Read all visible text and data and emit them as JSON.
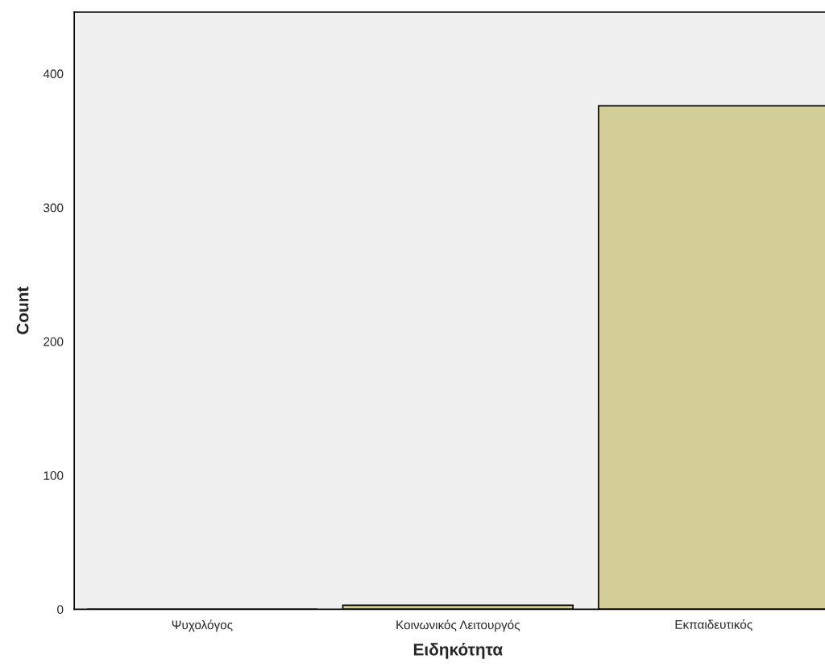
{
  "chart_data": {
    "type": "bar",
    "xlabel": "Ειδηκότητα",
    "ylabel": "Count",
    "categories": [
      "Ψυχολόγος",
      "Κοινωνικός Λειτουργός",
      "Εκπαιδευτικός"
    ],
    "values": [
      0,
      3,
      376
    ],
    "color": "#d3ce97",
    "ylim": [
      0,
      446
    ],
    "yticks": [
      0,
      100,
      200,
      300,
      400
    ],
    "grid": false,
    "legend": false
  }
}
